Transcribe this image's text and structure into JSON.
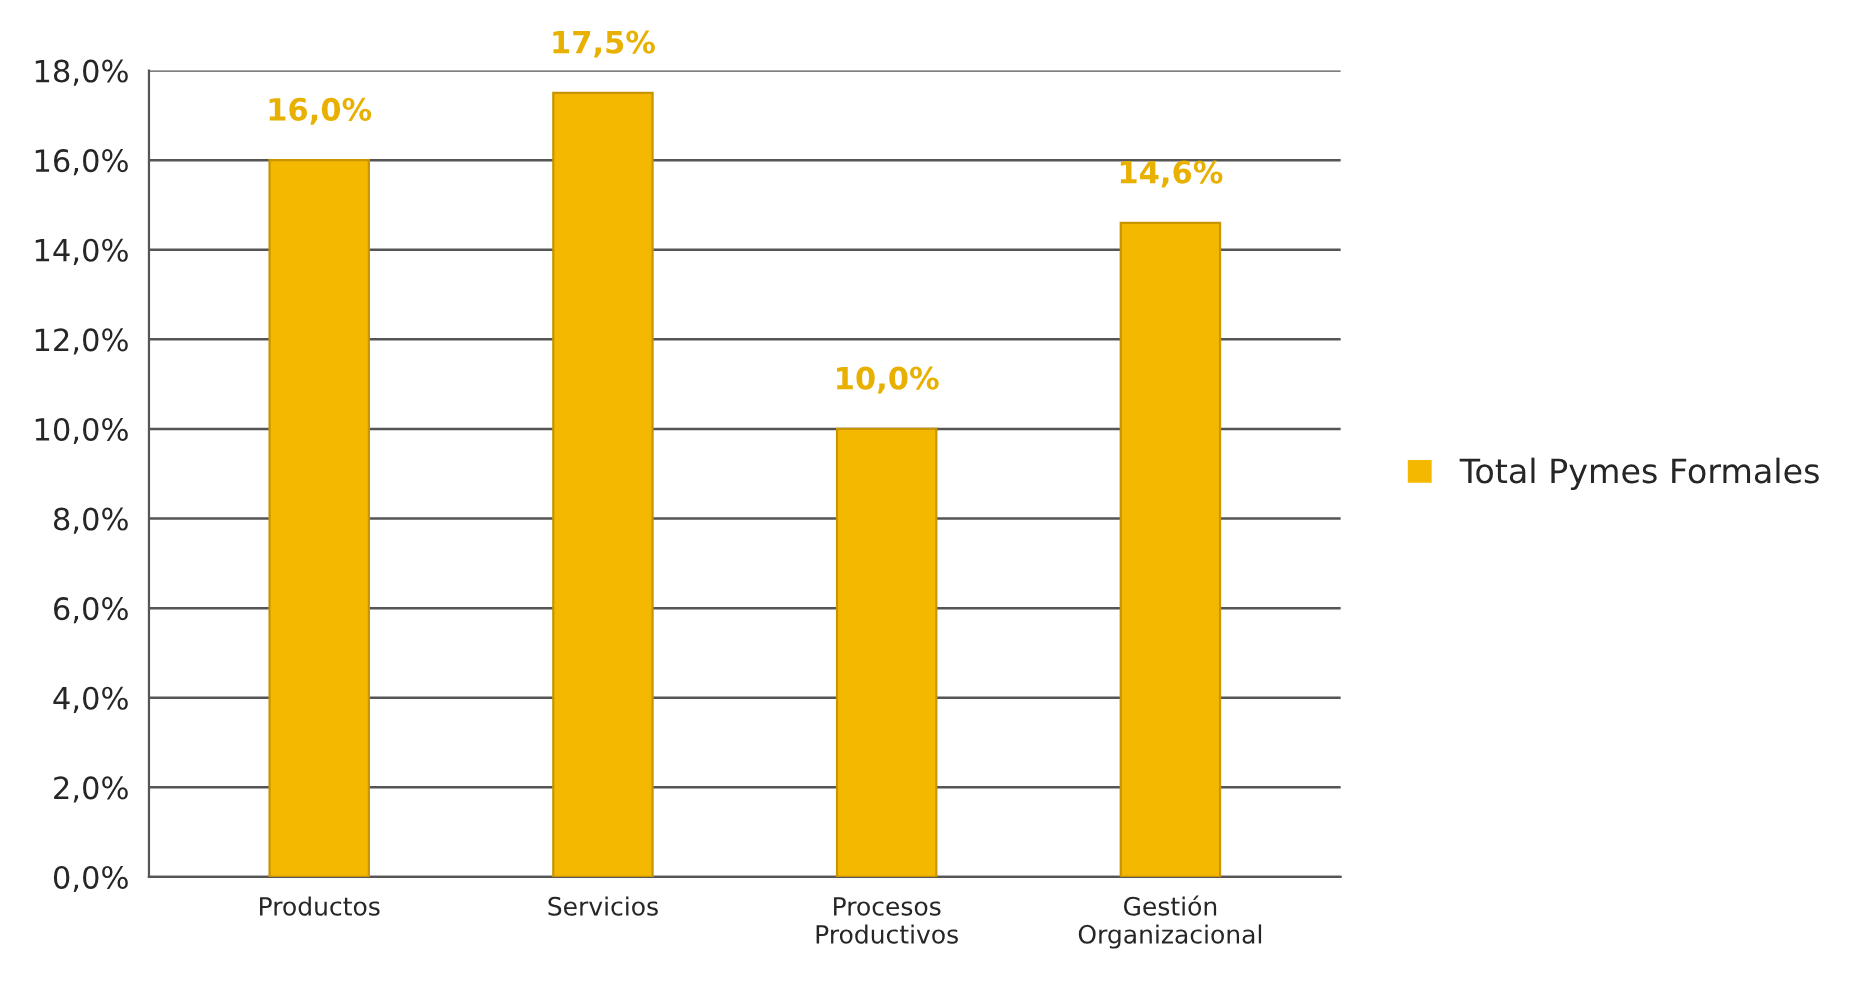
{
  "chart_data": {
    "type": "bar",
    "categories": [
      "Productos",
      "Servicios",
      "Procesos\nProductivos",
      "Gestión\nOrganizacional"
    ],
    "series": [
      {
        "name": "Total Pymes Formales",
        "color": "#f5b800",
        "values": [
          16.0,
          17.5,
          10.0,
          14.6
        ]
      }
    ],
    "value_labels": [
      "16,0%",
      "17,5%",
      "10,0%",
      "14,6%"
    ],
    "ylim": [
      0,
      18
    ],
    "yticks": [
      {
        "value": 0,
        "label": "0,0%"
      },
      {
        "value": 2,
        "label": "2,0%"
      },
      {
        "value": 4,
        "label": "4,0%"
      },
      {
        "value": 6,
        "label": "6,0%"
      },
      {
        "value": 8,
        "label": "8,0%"
      },
      {
        "value": 10,
        "label": "10,0%"
      },
      {
        "value": 12,
        "label": "12,0%"
      },
      {
        "value": 14,
        "label": "14,0%"
      },
      {
        "value": 16,
        "label": "16,0%"
      },
      {
        "value": 18,
        "label": "18,0%"
      }
    ],
    "grid": "y",
    "legend": "right"
  }
}
